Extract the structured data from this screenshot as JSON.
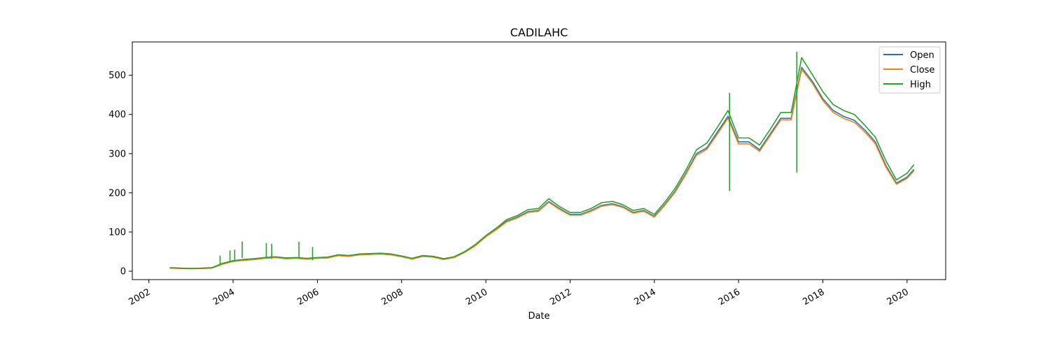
{
  "chart_data": {
    "type": "line",
    "title": "CADILAHC",
    "xlabel": "Date",
    "ylabel": "",
    "xlim": [
      "2001-08-10",
      "2020-12-01"
    ],
    "ylim": [
      -21.4,
      585
    ],
    "x_ticks": [
      "2002",
      "2004",
      "2006",
      "2008",
      "2010",
      "2012",
      "2014",
      "2016",
      "2018",
      "2020"
    ],
    "y_ticks": [
      "0",
      "100",
      "200",
      "300",
      "400",
      "500"
    ],
    "grid": false,
    "legend_position": "top-right",
    "colors": {
      "Open": "#1f77b4",
      "Close": "#ff7f0e",
      "High": "#2ca02c"
    },
    "x": [
      "2002-07-01",
      "2002-10-01",
      "2003-01-01",
      "2003-04-01",
      "2003-07-01",
      "2003-10-01",
      "2004-01-01",
      "2004-04-01",
      "2004-07-01",
      "2004-10-01",
      "2005-01-01",
      "2005-04-01",
      "2005-07-01",
      "2005-10-01",
      "2006-01-01",
      "2006-04-01",
      "2006-07-01",
      "2006-10-01",
      "2007-01-01",
      "2007-04-01",
      "2007-07-01",
      "2007-10-01",
      "2008-01-01",
      "2008-04-01",
      "2008-07-01",
      "2008-10-01",
      "2009-01-01",
      "2009-04-01",
      "2009-07-01",
      "2009-10-01",
      "2010-01-01",
      "2010-04-01",
      "2010-07-01",
      "2010-10-01",
      "2011-01-01",
      "2011-04-01",
      "2011-07-01",
      "2011-10-01",
      "2012-01-01",
      "2012-04-01",
      "2012-07-01",
      "2012-10-01",
      "2013-01-01",
      "2013-04-01",
      "2013-07-01",
      "2013-10-01",
      "2014-01-01",
      "2014-04-01",
      "2014-07-01",
      "2014-10-01",
      "2015-01-01",
      "2015-04-01",
      "2015-07-01",
      "2015-10-01",
      "2016-01-01",
      "2016-04-01",
      "2016-07-01",
      "2016-10-01",
      "2017-01-01",
      "2017-04-01",
      "2017-07-01",
      "2017-10-01",
      "2018-01-01",
      "2018-04-01",
      "2018-07-01",
      "2018-10-01",
      "2019-01-01",
      "2019-04-01",
      "2019-07-01",
      "2019-10-01",
      "2020-01-01",
      "2020-03-01"
    ],
    "series": [
      {
        "name": "Open",
        "values": [
          8,
          7,
          7,
          7,
          8,
          18,
          25,
          28,
          30,
          33,
          35,
          32,
          33,
          31,
          33,
          34,
          40,
          38,
          42,
          43,
          44,
          42,
          37,
          31,
          38,
          36,
          30,
          35,
          48,
          65,
          88,
          107,
          128,
          138,
          152,
          155,
          178,
          160,
          145,
          145,
          155,
          168,
          172,
          165,
          150,
          155,
          140,
          170,
          205,
          250,
          300,
          315,
          355,
          395,
          330,
          330,
          310,
          350,
          390,
          390,
          520,
          485,
          440,
          410,
          395,
          385,
          360,
          330,
          270,
          225,
          240,
          260
        ]
      },
      {
        "name": "Close",
        "values": [
          8,
          7,
          7,
          7,
          8,
          18,
          25,
          28,
          30,
          33,
          35,
          32,
          33,
          31,
          33,
          34,
          40,
          38,
          42,
          43,
          44,
          42,
          37,
          31,
          38,
          36,
          30,
          35,
          48,
          65,
          88,
          106,
          126,
          136,
          150,
          153,
          176,
          158,
          143,
          143,
          153,
          166,
          170,
          163,
          148,
          153,
          138,
          168,
          202,
          247,
          296,
          311,
          350,
          390,
          325,
          325,
          306,
          346,
          386,
          386,
          515,
          480,
          435,
          405,
          390,
          380,
          355,
          325,
          266,
          222,
          237,
          256
        ]
      },
      {
        "name": "High",
        "values": [
          9,
          8,
          7,
          8,
          9,
          20,
          27,
          30,
          32,
          35,
          37,
          34,
          35,
          33,
          35,
          36,
          42,
          40,
          44,
          45,
          46,
          44,
          39,
          33,
          40,
          38,
          32,
          37,
          50,
          68,
          91,
          110,
          132,
          142,
          157,
          160,
          185,
          165,
          150,
          150,
          160,
          175,
          178,
          170,
          155,
          160,
          145,
          176,
          212,
          258,
          310,
          327,
          367,
          410,
          340,
          340,
          322,
          362,
          405,
          405,
          545,
          502,
          458,
          425,
          410,
          400,
          372,
          342,
          282,
          233,
          250,
          272
        ]
      }
    ],
    "spikes": [
      {
        "date": "2003-09-10",
        "value": 40
      },
      {
        "date": "2003-12-05",
        "value": 53
      },
      {
        "date": "2004-01-15",
        "value": 55
      },
      {
        "date": "2004-03-20",
        "value": 76
      },
      {
        "date": "2004-10-15",
        "value": 72
      },
      {
        "date": "2004-12-01",
        "value": 70
      },
      {
        "date": "2005-07-25",
        "value": 75
      },
      {
        "date": "2005-11-20",
        "value": 62
      },
      {
        "date": "2017-05-20",
        "value": 560
      },
      {
        "date": "2015-10-15",
        "value": 455
      }
    ]
  }
}
